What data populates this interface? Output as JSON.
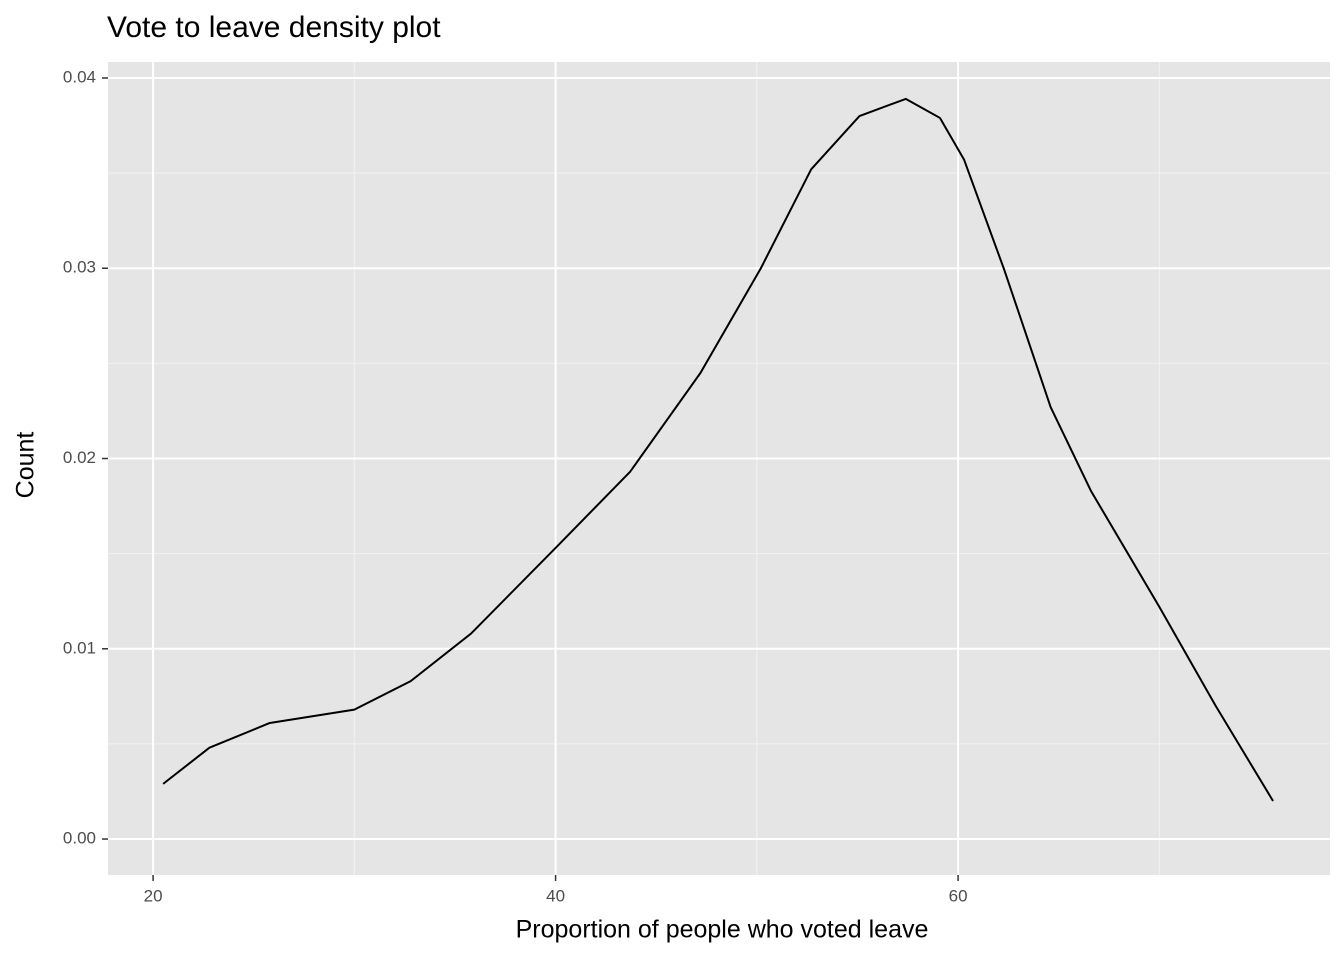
{
  "chart_data": {
    "type": "line",
    "title": "Vote to leave density plot",
    "x_label": "Proportion of people who voted leave",
    "y_label": "Count",
    "x": [
      20.5,
      22.8,
      25.8,
      30.0,
      32.8,
      35.8,
      40.0,
      43.7,
      47.2,
      50.2,
      52.7,
      55.1,
      57.4,
      59.1,
      60.3,
      62.3,
      64.6,
      66.6,
      70.0,
      72.8,
      75.65
    ],
    "series": [
      {
        "color": "#000000",
        "values": [
          0.0029,
          0.0048,
          0.0061,
          0.0068,
          0.0083,
          0.0108,
          0.0153,
          0.0193,
          0.0245,
          0.03,
          0.0352,
          0.038,
          0.0389,
          0.0379,
          0.0357,
          0.0299,
          0.0227,
          0.0183,
          0.0122,
          0.007,
          0.002
        ]
      }
    ],
    "xlim": [
      17.76,
      78.48
    ],
    "ylim": [
      -0.00189,
      0.04084
    ],
    "xticks": [
      20,
      40,
      60
    ],
    "yticks": [
      {
        "value": 0,
        "label": "0.00"
      },
      {
        "value": 0.01,
        "label": "0.01"
      },
      {
        "value": 0.02,
        "label": "0.02"
      },
      {
        "value": 0.03,
        "label": "0.03"
      },
      {
        "value": 0.04,
        "label": "0.04"
      }
    ],
    "x_minor_ticks": [
      30,
      50,
      70
    ],
    "y_minor_ticks": [
      0.005,
      0.015,
      0.025,
      0.035
    ],
    "grid": true
  }
}
